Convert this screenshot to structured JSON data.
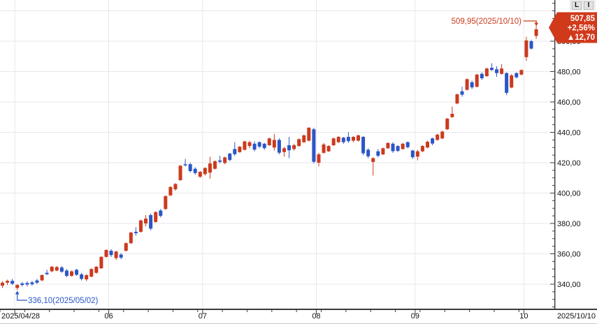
{
  "toolbar": {
    "icons": [
      "L",
      "I"
    ]
  },
  "price_tag": {
    "price": "507,85",
    "change_percent": "+2,56%",
    "change_value": "▲12,70"
  },
  "annotations": {
    "high_label": "509,95(2025/10/10)",
    "low_label": "336,10(2025/05/02)"
  },
  "x_axis": {
    "left_label": "2025/04/28",
    "right_label": "2025/10/10"
  },
  "colors": {
    "up": "#cc3a1d",
    "down": "#2a56c6",
    "grid": "#e7e7ec",
    "axis": "#3a3a3a",
    "label": "#111111",
    "tag_bg": "#d1391b",
    "tag_text": "#ffffff",
    "background": "#ffffff"
  },
  "chart_data": {
    "type": "candlestick",
    "title": "",
    "period_start": "2025/04/28",
    "period_end": "2025/10/10",
    "lowest": {
      "value": 336.1,
      "date": "2025/05/02"
    },
    "latest": {
      "close": 507.85,
      "change_percent": 2.56,
      "change_abs": 12.7,
      "high": 509.95,
      "date": "2025/10/10"
    },
    "y_tick_labels": [
      "340,00",
      "360,00",
      "380,00",
      "400,00",
      "420,00",
      "440,00",
      "460,00",
      "480,00",
      "500,00"
    ],
    "y_tick_values": [
      340,
      360,
      380,
      400,
      420,
      440,
      460,
      480,
      500
    ],
    "y_gridline_values": [
      340,
      360,
      380,
      400,
      420,
      440,
      460,
      480,
      500,
      520
    ],
    "y_minor_step": 5,
    "month_boundaries": [
      {
        "label": "",
        "index": 3
      },
      {
        "label": "06",
        "index": 22
      },
      {
        "label": "07",
        "index": 41
      },
      {
        "label": "08",
        "index": 64
      },
      {
        "label": "09",
        "index": 84
      },
      {
        "label": "10",
        "index": 106
      }
    ],
    "high_annotation_index": 108,
    "low_annotation_index": 3,
    "candles_format": [
      "open",
      "high",
      "low",
      "close"
    ],
    "candles": [
      [
        339,
        342,
        337.5,
        341
      ],
      [
        341,
        343,
        339.5,
        342.2
      ],
      [
        342.2,
        343.5,
        339.5,
        340.3
      ],
      [
        337.5,
        340,
        336.1,
        339.5
      ],
      [
        340.5,
        341.5,
        338.5,
        339.5
      ],
      [
        340.8,
        342,
        338.5,
        339.8
      ],
      [
        341.2,
        342.2,
        339,
        340
      ],
      [
        342.5,
        343.5,
        340,
        341
      ],
      [
        342.5,
        346.5,
        342,
        346
      ],
      [
        347.5,
        349.5,
        346,
        346.6
      ],
      [
        348.5,
        352,
        348,
        351.5
      ],
      [
        349,
        352,
        348.5,
        351.3
      ],
      [
        351,
        352,
        347.5,
        348.2
      ],
      [
        349,
        350,
        344.5,
        345.5
      ],
      [
        345.5,
        349,
        345,
        348.5
      ],
      [
        349.5,
        350,
        345.5,
        346.2
      ],
      [
        346.5,
        347.5,
        342.5,
        343.5
      ],
      [
        343.2,
        346.5,
        342,
        346
      ],
      [
        345,
        350.5,
        344.5,
        350
      ],
      [
        347.5,
        352,
        347,
        351.5
      ],
      [
        350.5,
        358.5,
        350,
        358
      ],
      [
        358,
        363,
        357.5,
        362.5
      ],
      [
        362,
        363,
        358,
        359.2
      ],
      [
        357.2,
        362,
        356,
        361.5
      ],
      [
        359.5,
        360.5,
        356.5,
        357.5
      ],
      [
        362,
        367.5,
        361.5,
        367
      ],
      [
        367,
        374.5,
        366.5,
        374
      ],
      [
        374.5,
        377.5,
        372,
        373.6
      ],
      [
        374.5,
        382.5,
        374,
        382
      ],
      [
        380,
        385.5,
        378,
        383.2
      ],
      [
        385.5,
        386.5,
        375.5,
        376.6
      ],
      [
        381,
        388,
        380.5,
        387.5
      ],
      [
        388.5,
        389.5,
        384,
        385
      ],
      [
        389.5,
        398.5,
        389,
        398
      ],
      [
        398.5,
        404.5,
        398,
        404
      ],
      [
        402.5,
        406.5,
        401.5,
        406
      ],
      [
        408.5,
        418.5,
        408,
        418
      ],
      [
        419,
        422.5,
        417.5,
        418.3
      ],
      [
        419,
        420,
        413.5,
        414.5
      ],
      [
        416,
        417,
        412,
        413.2
      ],
      [
        410.8,
        414.5,
        410,
        414
      ],
      [
        412.5,
        417,
        411.5,
        416.5
      ],
      [
        413.5,
        424,
        409.5,
        419.5
      ],
      [
        416,
        421.5,
        415.5,
        421
      ],
      [
        421.5,
        424.5,
        419.5,
        420.6
      ],
      [
        419.8,
        424,
        419,
        423.5
      ],
      [
        426,
        426.5,
        421,
        421.8
      ],
      [
        429,
        433.5,
        424.5,
        425.6
      ],
      [
        427,
        431,
        426.5,
        430.5
      ],
      [
        428.5,
        434.5,
        428,
        434
      ],
      [
        431,
        434.5,
        429.5,
        433.5
      ],
      [
        432.5,
        434,
        427.5,
        428.6
      ],
      [
        433.5,
        434,
        429.5,
        430.6
      ],
      [
        432.5,
        433,
        428.5,
        429.6
      ],
      [
        431.5,
        436.5,
        431,
        436
      ],
      [
        430,
        439,
        428,
        435
      ],
      [
        435,
        436,
        425.5,
        426.6
      ],
      [
        427,
        430.5,
        424,
        429.5
      ],
      [
        431.5,
        437,
        423,
        428.2
      ],
      [
        429,
        432.5,
        428,
        431.5
      ],
      [
        431,
        436,
        430.5,
        435.5
      ],
      [
        433.5,
        438.5,
        433,
        438
      ],
      [
        434.5,
        443.5,
        434,
        443
      ],
      [
        442,
        443,
        419.5,
        420.6
      ],
      [
        420,
        426.5,
        417.5,
        425.5
      ],
      [
        426.5,
        433,
        426,
        432
      ],
      [
        427.5,
        431.5,
        427,
        431
      ],
      [
        431.5,
        436.5,
        431,
        436
      ],
      [
        433.5,
        437.5,
        433,
        437
      ],
      [
        436.5,
        437,
        432.5,
        433.5
      ],
      [
        437,
        440,
        433,
        434.2
      ],
      [
        434.5,
        437.5,
        433.5,
        437
      ],
      [
        434.5,
        438.5,
        434,
        438
      ],
      [
        437,
        437.5,
        425,
        426.2
      ],
      [
        428.5,
        429.5,
        423,
        424.2
      ],
      [
        420.5,
        423.5,
        411.5,
        423
      ],
      [
        427.5,
        429,
        423.5,
        424.6
      ],
      [
        425.5,
        430,
        425,
        429.5
      ],
      [
        429.5,
        433.5,
        429,
        433
      ],
      [
        432.5,
        433.5,
        426.5,
        427.6
      ],
      [
        431,
        431.5,
        427,
        427.8
      ],
      [
        429,
        433,
        428.5,
        432.5
      ],
      [
        433.5,
        434,
        429.5,
        430.2
      ],
      [
        428,
        428.5,
        422.5,
        423.6
      ],
      [
        424,
        428.5,
        421.5,
        427.5
      ],
      [
        427.5,
        431.5,
        427,
        431
      ],
      [
        430,
        434.5,
        429.5,
        433.8
      ],
      [
        436,
        436.5,
        431.5,
        432.6
      ],
      [
        435,
        439,
        434.5,
        438.5
      ],
      [
        436,
        441,
        435.5,
        440.5
      ],
      [
        442,
        449.5,
        441.5,
        449
      ],
      [
        450,
        457,
        449.5,
        452.2
      ],
      [
        459,
        465.5,
        458.5,
        465
      ],
      [
        467,
        470,
        463.5,
        464.8
      ],
      [
        468,
        475.5,
        467.5,
        475
      ],
      [
        473,
        474,
        468.5,
        469.6
      ],
      [
        470,
        478.5,
        469.5,
        478
      ],
      [
        478.5,
        479.5,
        474.5,
        475.6
      ],
      [
        477,
        482.5,
        476.5,
        482
      ],
      [
        482.5,
        485.5,
        480.5,
        481
      ],
      [
        481.5,
        483.5,
        476.5,
        479
      ],
      [
        478.5,
        485,
        478,
        482
      ],
      [
        479,
        479.5,
        464.5,
        466
      ],
      [
        469.5,
        478.5,
        469,
        477.5
      ],
      [
        479,
        479.5,
        475.5,
        476.2
      ],
      [
        478,
        481.5,
        477.5,
        481
      ],
      [
        489.5,
        503,
        487,
        500.5
      ],
      [
        500,
        501,
        494.5,
        495.15
      ],
      [
        503.5,
        509.95,
        501.5,
        507.85
      ]
    ]
  }
}
